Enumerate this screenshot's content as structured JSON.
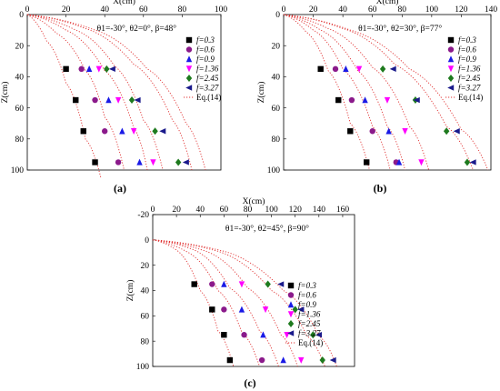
{
  "colors": {
    "f=0.3": "#000000",
    "f=0.6": "#8b1a8b",
    "f=0.9": "#1a1ae6",
    "f=1.36": "#ff00ff",
    "f=2.45": "#1e7a1e",
    "f=3.27": "#1a1a8b",
    "eq": "#e03030"
  },
  "chart_data": [
    {
      "type": "scatter",
      "caption": "(a)",
      "annotation": "θ1=-30°, θ2=0°, β=48°",
      "xlabel": "X(cm)",
      "ylabel": "Z(cm)",
      "xlim": [
        0,
        100
      ],
      "ylim": [
        0,
        100
      ],
      "xticks": [
        0,
        20,
        40,
        60,
        80,
        100
      ],
      "yticks": [
        0,
        20,
        40,
        60,
        80,
        100
      ],
      "legend_position": "top-right",
      "legend_fit_label": "Eq.(14)",
      "series": [
        {
          "name": "f=0.3",
          "marker": "square",
          "x": [
            20,
            25,
            29,
            35
          ],
          "z": [
            35,
            55,
            75,
            95
          ]
        },
        {
          "name": "f=0.6",
          "marker": "circle",
          "x": [
            28,
            35,
            40,
            47
          ],
          "z": [
            35,
            55,
            75,
            95
          ]
        },
        {
          "name": "f=0.9",
          "marker": "triangle-up",
          "x": [
            32,
            42,
            49,
            58
          ],
          "z": [
            35,
            55,
            75,
            95
          ]
        },
        {
          "name": "f=1.36",
          "marker": "triangle-down",
          "x": [
            37,
            47,
            55,
            65
          ],
          "z": [
            35,
            55,
            75,
            95
          ]
        },
        {
          "name": "f=2.45",
          "marker": "diamond",
          "x": [
            41,
            54,
            66,
            78
          ],
          "z": [
            35,
            55,
            75,
            95
          ]
        },
        {
          "name": "f=3.27",
          "marker": "triangle-left",
          "x": [
            44,
            57,
            70,
            82
          ],
          "z": [
            35,
            55,
            75,
            95
          ]
        }
      ],
      "fit_curves": [
        {
          "x": [
            0,
            10,
            20,
            30,
            38
          ],
          "z": [
            0,
            17,
            44,
            80,
            105
          ]
        },
        {
          "x": [
            0,
            15,
            30,
            40,
            50
          ],
          "z": [
            0,
            12,
            36,
            66,
            100
          ]
        },
        {
          "x": [
            0,
            20,
            40,
            55,
            62
          ],
          "z": [
            0,
            10,
            36,
            73,
            100
          ]
        },
        {
          "x": [
            0,
            25,
            45,
            60,
            70
          ],
          "z": [
            0,
            10,
            33,
            68,
            100
          ]
        },
        {
          "x": [
            0,
            30,
            55,
            75,
            85
          ],
          "z": [
            0,
            9,
            32,
            68,
            100
          ]
        },
        {
          "x": [
            0,
            35,
            62,
            82,
            92
          ],
          "z": [
            0,
            10,
            35,
            70,
            100
          ]
        }
      ]
    },
    {
      "type": "scatter",
      "caption": "(b)",
      "annotation": "θ1=-30°, θ2=30°, β=77°",
      "xlabel": "X(cm)",
      "ylabel": "Z(cm)",
      "xlim": [
        0,
        140
      ],
      "ylim": [
        0,
        100
      ],
      "xticks": [
        0,
        20,
        40,
        60,
        80,
        100,
        120,
        140
      ],
      "yticks": [
        0,
        20,
        40,
        60,
        80,
        100
      ],
      "legend_position": "top-right",
      "legend_fit_label": "Eq.(14)",
      "series": [
        {
          "name": "f=0.3",
          "marker": "square",
          "x": [
            25,
            37,
            45,
            56
          ],
          "z": [
            35,
            55,
            75,
            95
          ]
        },
        {
          "name": "f=0.6",
          "marker": "circle",
          "x": [
            35,
            46,
            60,
            76
          ],
          "z": [
            35,
            55,
            75,
            95
          ]
        },
        {
          "name": "f=0.9",
          "marker": "triangle-up",
          "x": [
            42,
            55,
            71,
            78
          ],
          "z": [
            35,
            55,
            75,
            95
          ]
        },
        {
          "name": "f=1.36",
          "marker": "triangle-down",
          "x": [
            51,
            70,
            82,
            93
          ],
          "z": [
            35,
            55,
            75,
            95
          ]
        },
        {
          "name": "f=2.45",
          "marker": "diamond",
          "x": [
            67,
            89,
            110,
            124
          ],
          "z": [
            35,
            55,
            75,
            95
          ]
        },
        {
          "name": "f=3.27",
          "marker": "triangle-left",
          "x": [
            74,
            90,
            117,
            128
          ],
          "z": [
            35,
            55,
            75,
            95
          ]
        }
      ],
      "fit_curves": [
        {
          "x": [
            0,
            15,
            30,
            45,
            58
          ],
          "z": [
            0,
            11,
            36,
            70,
            100
          ]
        },
        {
          "x": [
            0,
            20,
            40,
            60,
            72
          ],
          "z": [
            0,
            10,
            35,
            72,
            100
          ]
        },
        {
          "x": [
            0,
            25,
            50,
            70,
            82
          ],
          "z": [
            0,
            10,
            36,
            72,
            100
          ]
        },
        {
          "x": [
            0,
            30,
            60,
            85,
            98
          ],
          "z": [
            0,
            9,
            34,
            72,
            100
          ]
        },
        {
          "x": [
            0,
            40,
            75,
            110,
            128
          ],
          "z": [
            0,
            9,
            32,
            72,
            100
          ]
        },
        {
          "x": [
            0,
            45,
            85,
            120,
            138
          ],
          "z": [
            0,
            10,
            35,
            74,
            100
          ]
        }
      ]
    },
    {
      "type": "scatter",
      "caption": "(c)",
      "annotation": "θ1=-30°, θ2=45°, β=90°",
      "xlabel": "X(cm)",
      "ylabel": "Z(cm)",
      "xlim": [
        0,
        170
      ],
      "ylim": [
        -20,
        100
      ],
      "xticks": [
        0,
        20,
        40,
        60,
        80,
        100,
        120,
        140,
        160
      ],
      "yticks": [
        -20,
        0,
        20,
        40,
        60,
        80,
        100
      ],
      "legend_position": "right",
      "legend_fit_label": "Eq.(14)",
      "series": [
        {
          "name": "f=0.3",
          "marker": "square",
          "x": [
            35,
            50,
            60,
            65
          ],
          "z": [
            35,
            55,
            75,
            95
          ]
        },
        {
          "name": "f=0.6",
          "marker": "circle",
          "x": [
            50,
            60,
            77,
            92
          ],
          "z": [
            35,
            55,
            75,
            95
          ]
        },
        {
          "name": "f=0.9",
          "marker": "triangle-up",
          "x": [
            60,
            75,
            93,
            110
          ],
          "z": [
            35,
            55,
            75,
            95
          ]
        },
        {
          "name": "f=1.36",
          "marker": "triangle-down",
          "x": [
            75,
            95,
            113,
            125
          ],
          "z": [
            35,
            55,
            75,
            95
          ]
        },
        {
          "name": "f=2.45",
          "marker": "diamond",
          "x": [
            97,
            120,
            135,
            143
          ],
          "z": [
            35,
            55,
            75,
            95
          ]
        },
        {
          "name": "f=3.27",
          "marker": "triangle-left",
          "x": [
            108,
            125,
            140,
            152
          ],
          "z": [
            35,
            55,
            75,
            95
          ]
        }
      ],
      "fit_curves": [
        {
          "x": [
            0,
            20,
            40,
            55,
            68
          ],
          "z": [
            0,
            8,
            40,
            72,
            100
          ]
        },
        {
          "x": [
            0,
            30,
            55,
            75,
            90
          ],
          "z": [
            0,
            10,
            40,
            73,
            100
          ]
        },
        {
          "x": [
            0,
            35,
            65,
            90,
            106
          ],
          "z": [
            0,
            8,
            38,
            72,
            100
          ]
        },
        {
          "x": [
            0,
            45,
            80,
            108,
            122
          ],
          "z": [
            0,
            9,
            38,
            75,
            100
          ]
        },
        {
          "x": [
            0,
            55,
            100,
            130,
            145
          ],
          "z": [
            0,
            9,
            40,
            76,
            100
          ]
        },
        {
          "x": [
            0,
            60,
            110,
            140,
            155
          ],
          "z": [
            0,
            9,
            40,
            76,
            100
          ]
        }
      ]
    }
  ]
}
